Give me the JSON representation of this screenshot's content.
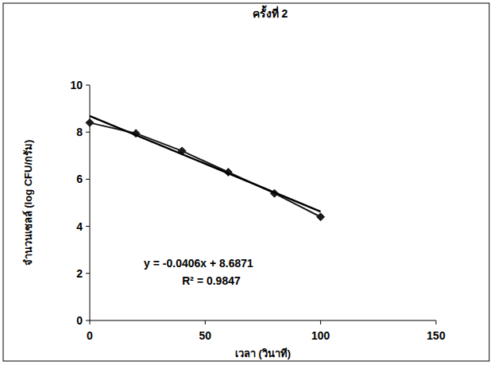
{
  "chart_data": {
    "type": "line",
    "title": "ครั้งที่ 2",
    "x_label": "เวลา (วินาที)",
    "y_label": "จำนวนเซลล์ (log CFU/กรัม)",
    "xlim": [
      0,
      150
    ],
    "xticks": [
      0,
      50,
      100,
      150
    ],
    "ylim": [
      0,
      10
    ],
    "yticks": [
      0,
      2,
      4,
      6,
      8,
      10
    ],
    "grid": false,
    "annotations": [
      "y = -0.0406x + 8.6871",
      "R² = 0.9847"
    ],
    "series": [
      {
        "color": "#1a1a1a",
        "marker": "diamond",
        "line_style": "solid",
        "x": [
          0,
          20,
          40,
          60,
          80,
          100
        ],
        "values": [
          8.4,
          7.95,
          7.2,
          6.3,
          5.4,
          4.4
        ]
      },
      {
        "color": "#000000",
        "marker": "none",
        "line_style": "solid",
        "x": [
          0,
          100
        ],
        "values": [
          8.6871,
          4.6271
        ]
      }
    ]
  }
}
